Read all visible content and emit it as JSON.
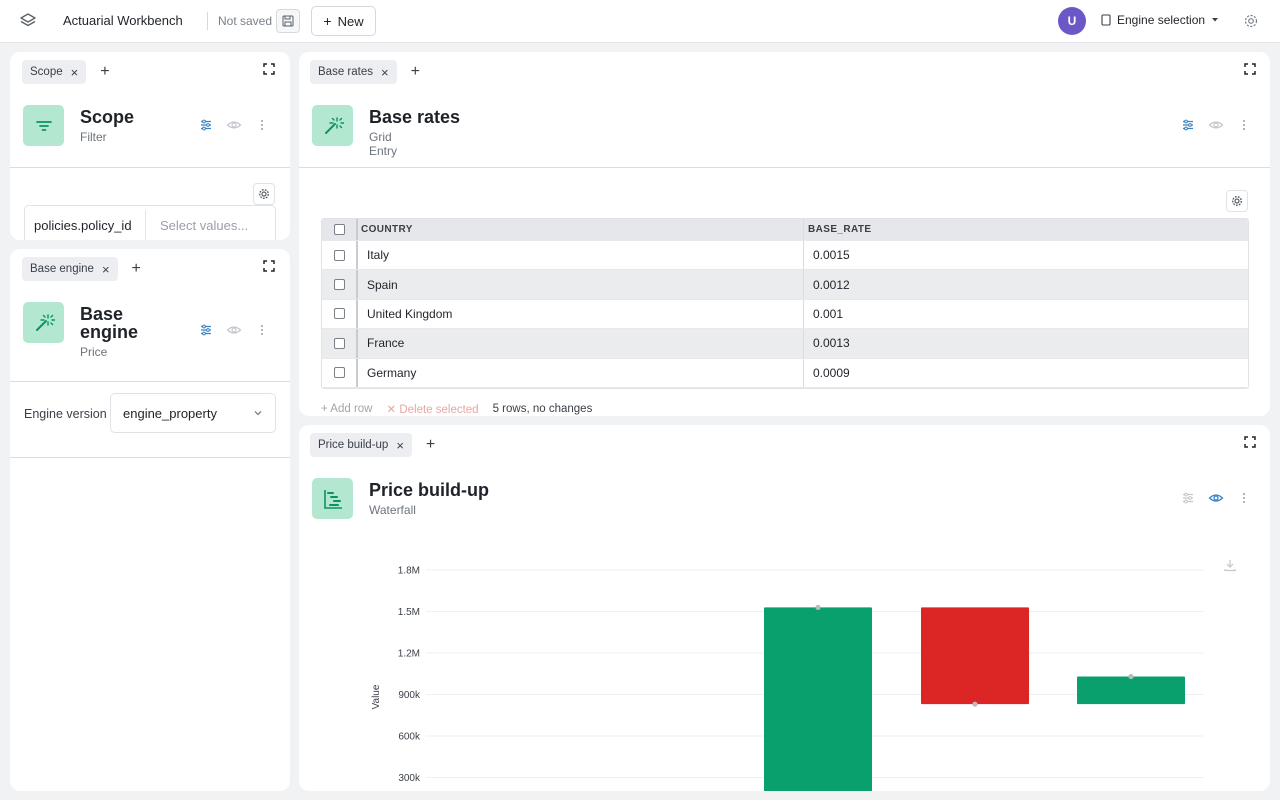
{
  "topbar": {
    "app_title": "Actuarial Workbench",
    "save_status": "Not saved",
    "new_label": "New",
    "avatar_initial": "U",
    "engine_selection_label": "Engine selection",
    "icons": [
      "layers-icon",
      "save-icon",
      "plus-icon",
      "document-icon",
      "caret-down-icon",
      "gear-icon"
    ]
  },
  "scope_panel": {
    "tab_label": "Scope",
    "title": "Scope",
    "subtitle": "Filter",
    "filter_field": "policies.policy_id",
    "filter_placeholder": "Select values..."
  },
  "base_engine_panel": {
    "tab_label": "Base engine",
    "title_line1": "Base",
    "title_line2": "engine",
    "subtitle": "Price",
    "engine_version_label": "Engine version",
    "engine_version_value": "engine_property"
  },
  "base_rates_panel": {
    "tab_label": "Base rates",
    "title": "Base rates",
    "subtitle": "Grid Entry",
    "columns": [
      "COUNTRY",
      "BASE_RATE"
    ],
    "rows": [
      {
        "country": "Italy",
        "base_rate": "0.0015"
      },
      {
        "country": "Spain",
        "base_rate": "0.0012"
      },
      {
        "country": "United Kingdom",
        "base_rate": "0.001"
      },
      {
        "country": "France",
        "base_rate": "0.0013"
      },
      {
        "country": "Germany",
        "base_rate": "0.0009"
      }
    ],
    "add_row_label": "Add row",
    "delete_selected_label": "Delete selected",
    "status": "5 rows, no changes"
  },
  "price_buildup_panel": {
    "tab_label": "Price build-up",
    "title": "Price build-up",
    "subtitle": "Waterfall"
  },
  "colors": {
    "accent_green": "#0aa06e",
    "decrease_red": "#dc2626",
    "icon_bg": "#b3e7cf",
    "link_blue": "#3b82c4",
    "avatar": "#6b57c6"
  },
  "chart_data": {
    "type": "bar",
    "subtype": "waterfall",
    "ylabel": "Value",
    "ytick_labels": [
      "300k",
      "600k",
      "900k",
      "1.2M",
      "1.5M",
      "1.8M"
    ],
    "ylim": [
      0,
      1800000
    ],
    "bars": [
      {
        "start": 0,
        "end": 1530000,
        "kind": "increase"
      },
      {
        "start": 1530000,
        "end": 830000,
        "kind": "decrease"
      },
      {
        "start": 830000,
        "end": 1030000,
        "kind": "increase"
      }
    ],
    "grid": true
  }
}
